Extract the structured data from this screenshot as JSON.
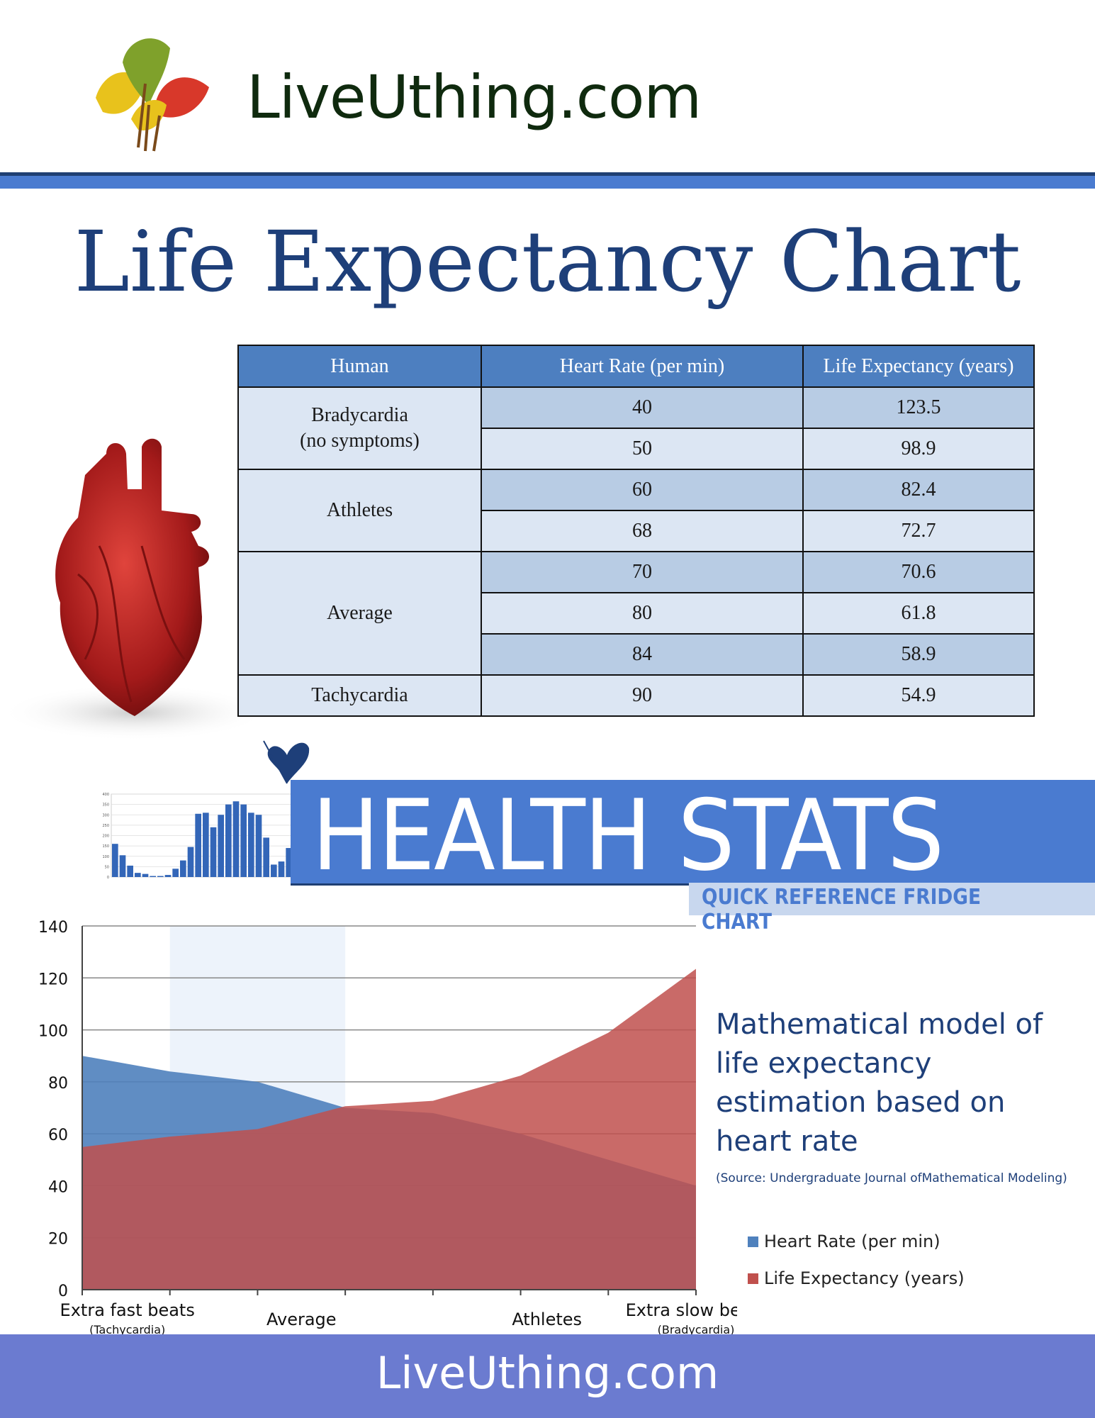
{
  "brand": {
    "site_name": "LiveUthing.com"
  },
  "title": "Life Expectancy Chart",
  "table": {
    "headers": [
      "Human",
      "Heart Rate (per min)",
      "Life Expectancy (years)"
    ],
    "groups": [
      {
        "label": "Bradycardia\n(no symptoms)",
        "rows": [
          {
            "hr": "40",
            "le": "123.5"
          },
          {
            "hr": "50",
            "le": "98.9"
          }
        ]
      },
      {
        "label": "Athletes",
        "rows": [
          {
            "hr": "60",
            "le": "82.4"
          },
          {
            "hr": "68",
            "le": "72.7"
          }
        ]
      },
      {
        "label": "Average",
        "rows": [
          {
            "hr": "70",
            "le": "70.6"
          },
          {
            "hr": "80",
            "le": "61.8"
          },
          {
            "hr": "84",
            "le": "58.9"
          }
        ]
      },
      {
        "label": "Tachycardia",
        "rows": [
          {
            "hr": "90",
            "le": "54.9"
          }
        ]
      }
    ]
  },
  "banner": {
    "title": "HEALTH STATS",
    "subtitle": "QUICK REFERENCE FRIDGE CHART"
  },
  "chart_data": [
    {
      "type": "area",
      "x": [
        "90",
        "84",
        "80",
        "70",
        "68",
        "60",
        "50",
        "40"
      ],
      "series": [
        {
          "name": "Heart Rate (per min)",
          "color": "#4f81bd",
          "values": [
            90,
            84,
            80,
            70,
            68,
            60,
            50,
            40
          ]
        },
        {
          "name": "Life Expectancy (years)",
          "color": "#c0504d",
          "values": [
            54.9,
            58.9,
            61.8,
            70.6,
            72.7,
            82.4,
            98.9,
            123.5
          ]
        }
      ],
      "ylim": [
        0,
        140
      ],
      "yticks": [
        0,
        20,
        40,
        60,
        80,
        100,
        120,
        140
      ],
      "xlabels": [
        {
          "label": "Extra fast beats",
          "sublabel": "(Tachycardia)"
        },
        {
          "label": "Average",
          "sublabel": ""
        },
        {
          "label": "Athletes",
          "sublabel": ""
        },
        {
          "label": "Extra slow beats",
          "sublabel": "(Bradycardia)"
        }
      ],
      "grid": true,
      "legend_position": "right",
      "description": "Mathematical model of life expectancy estimation based on heart rate",
      "source": "(Source: Undergraduate Journal ofMathematical Modeling)"
    },
    {
      "type": "bar",
      "values": [
        160,
        105,
        55,
        20,
        15,
        5,
        5,
        10,
        40,
        80,
        145,
        305,
        310,
        240,
        300,
        350,
        365,
        350,
        310,
        300,
        190,
        60,
        75,
        140
      ],
      "ylim": [
        0,
        400
      ],
      "yticks": [
        0,
        50,
        100,
        150,
        200,
        250,
        300,
        350,
        400
      ]
    }
  ]
}
